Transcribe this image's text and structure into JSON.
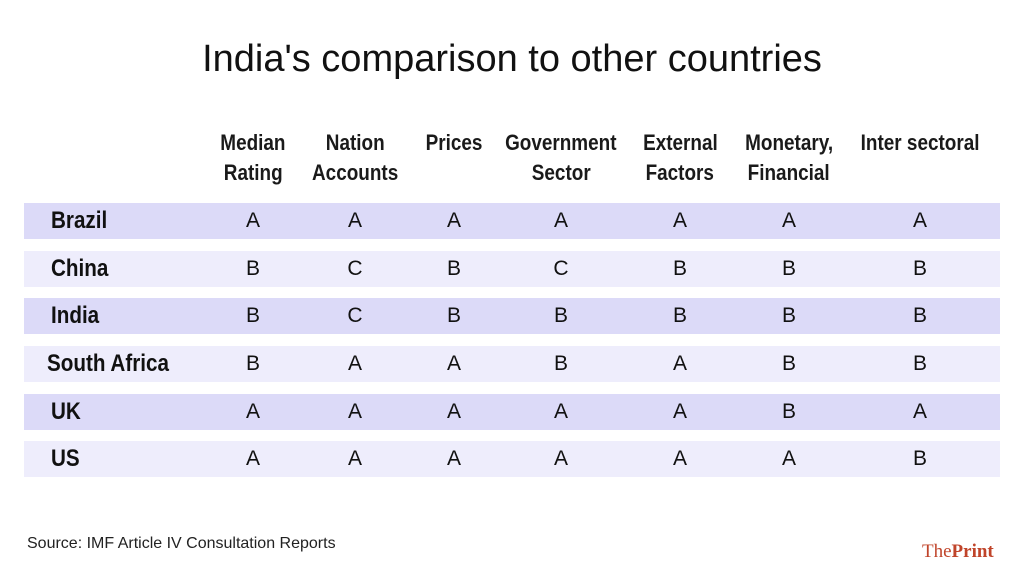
{
  "title": "India's comparison to other countries",
  "source": "Source: IMF Article IV Consultation Reports",
  "logo": {
    "part1": "The",
    "part2": "Print",
    "color": "#c0442a"
  },
  "colors": {
    "row_dark": "#dcdaf8",
    "row_light": "#eeedfc"
  },
  "chart_data": {
    "type": "table",
    "columns": [
      [
        "Median",
        "Rating"
      ],
      [
        "Nation",
        "Accounts"
      ],
      [
        "Prices",
        ""
      ],
      [
        "Government",
        "Sector"
      ],
      [
        "External",
        "Factors"
      ],
      [
        "Monetary,",
        "Financial"
      ],
      [
        "Inter sectoral",
        ""
      ]
    ],
    "rows": [
      {
        "country": "Brazil",
        "values": [
          "A",
          "A",
          "A",
          "A",
          "A",
          "A",
          "A"
        ]
      },
      {
        "country": "China",
        "values": [
          "B",
          "C",
          "B",
          "C",
          "B",
          "B",
          "B"
        ]
      },
      {
        "country": "India",
        "values": [
          "B",
          "C",
          "B",
          "B",
          "B",
          "B",
          "B"
        ]
      },
      {
        "country": "South Africa",
        "values": [
          "B",
          "A",
          "A",
          "B",
          "A",
          "B",
          "B"
        ]
      },
      {
        "country": "UK",
        "values": [
          "A",
          "A",
          "A",
          "A",
          "A",
          "B",
          "A"
        ]
      },
      {
        "country": "US",
        "values": [
          "A",
          "A",
          "A",
          "A",
          "A",
          "A",
          "B"
        ]
      }
    ]
  }
}
